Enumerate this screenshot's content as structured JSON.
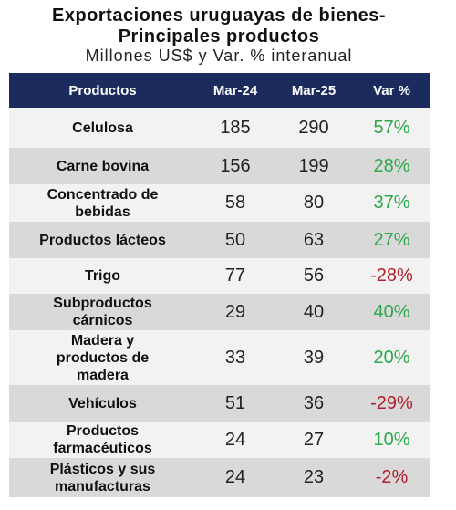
{
  "header": {
    "title": [
      "Exportaciones uruguayas de bienes-",
      "Principales productos"
    ],
    "subtitle": "Millones US$ y Var. % interanual"
  },
  "table": {
    "columns": [
      "Productos",
      "Mar-24",
      "Mar-25",
      "Var %"
    ],
    "rows": [
      [
        "Celulosa",
        "185",
        "290",
        "57%"
      ],
      [
        "Carne bovina",
        "156",
        "199",
        "28%"
      ],
      [
        "Concentrado de bebidas",
        "58",
        "80",
        "37%"
      ],
      [
        "Productos lácteos",
        "50",
        "63",
        "27%"
      ],
      [
        "Trigo",
        "77",
        "56",
        "-28%"
      ],
      [
        "Subproductos cárnicos",
        "29",
        "40",
        "40%"
      ],
      [
        "Madera y productos de madera",
        "33",
        "39",
        "20%"
      ],
      [
        "Vehículos",
        "51",
        "36",
        "-29%"
      ],
      [
        "Productos farmacéuticos",
        "24",
        "27",
        "10%"
      ],
      [
        "Plásticos y sus manufacturas",
        "24",
        "23",
        "-2%"
      ]
    ]
  }
}
